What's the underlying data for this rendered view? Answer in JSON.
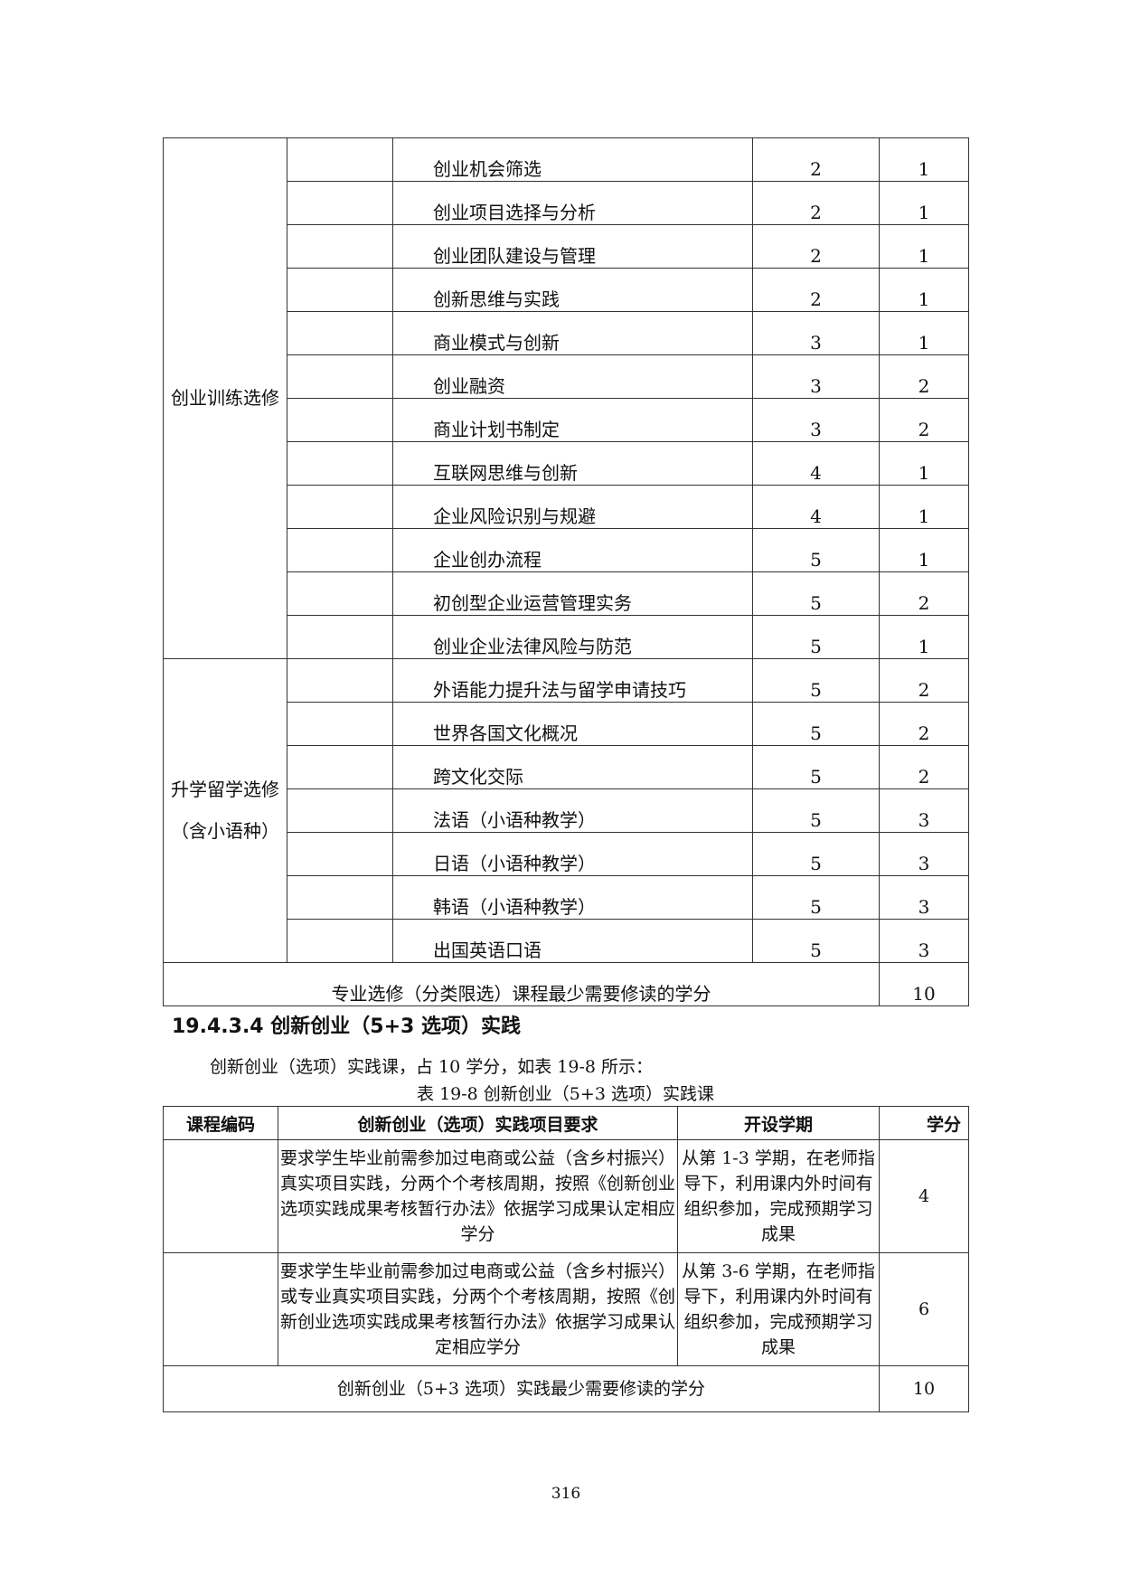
{
  "table1": {
    "groups": [
      {
        "category": "创业训练选修",
        "rows": [
          {
            "course": "创业机会筛选",
            "semester": "2",
            "credit": "1"
          },
          {
            "course": "创业项目选择与分析",
            "semester": "2",
            "credit": "1"
          },
          {
            "course": "创业团队建设与管理",
            "semester": "2",
            "credit": "1"
          },
          {
            "course": "创新思维与实践",
            "semester": "2",
            "credit": "1"
          },
          {
            "course": "商业模式与创新",
            "semester": "3",
            "credit": "1"
          },
          {
            "course": "创业融资",
            "semester": "3",
            "credit": "2"
          },
          {
            "course": "商业计划书制定",
            "semester": "3",
            "credit": "2"
          },
          {
            "course": "互联网思维与创新",
            "semester": "4",
            "credit": "1"
          },
          {
            "course": "企业风险识别与规避",
            "semester": "4",
            "credit": "1"
          },
          {
            "course": "企业创办流程",
            "semester": "5",
            "credit": "1"
          },
          {
            "course": "初创型企业运营管理实务",
            "semester": "5",
            "credit": "2"
          },
          {
            "course": "创业企业法律风险与防范",
            "semester": "5",
            "credit": "1"
          }
        ]
      },
      {
        "category": "升学留学选修",
        "category_line2": "（含小语种）",
        "rows": [
          {
            "course": "外语能力提升法与留学申请技巧",
            "semester": "5",
            "credit": "2"
          },
          {
            "course": "世界各国文化概况",
            "semester": "5",
            "credit": "2"
          },
          {
            "course": "跨文化交际",
            "semester": "5",
            "credit": "2"
          },
          {
            "course": "法语（小语种教学）",
            "semester": "5",
            "credit": "3"
          },
          {
            "course": "日语（小语种教学）",
            "semester": "5",
            "credit": "3"
          },
          {
            "course": "韩语（小语种教学）",
            "semester": "5",
            "credit": "3"
          },
          {
            "course": "出国英语口语",
            "semester": "5",
            "credit": "3"
          }
        ]
      }
    ],
    "summary_label": "专业选修（分类限选）课程最少需要修读的学分",
    "summary_value": "10"
  },
  "heading": "19.4.3.4 创新创业（5+3 选项）实践",
  "paragraph": "创新创业（选项）实践课，占 10 学分，如表 19-8 所示：",
  "caption": "表 19-8 创新创业（5+3 选项）实践课",
  "table2": {
    "headers": [
      "课程编码",
      "创新创业（选项）实践项目要求",
      "开设学期",
      "学分"
    ],
    "rows": [
      {
        "code": "",
        "requirement": "要求学生毕业前需参加过电商或公益（含乡村振兴）真实项目实践，分两个个考核周期，按照《创新创业选项实践成果考核暂行办法》依据学习成果认定相应学分",
        "semester": "从第 1-3 学期，在老师指导下，利用课内外时间有组织参加，完成预期学习成果",
        "credit": "4"
      },
      {
        "code": "",
        "requirement": "要求学生毕业前需参加过电商或公益（含乡村振兴）或专业真实项目实践，分两个个考核周期，按照《创新创业选项实践成果考核暂行办法》依据学习成果认定相应学分",
        "semester": "从第 3-6 学期，在老师指导下，利用课内外时间有组织参加，完成预期学习成果",
        "credit": "6"
      }
    ],
    "summary_label": "创新创业（5+3 选项）实践最少需要修读的学分",
    "summary_value": "10"
  },
  "page_number": "316"
}
